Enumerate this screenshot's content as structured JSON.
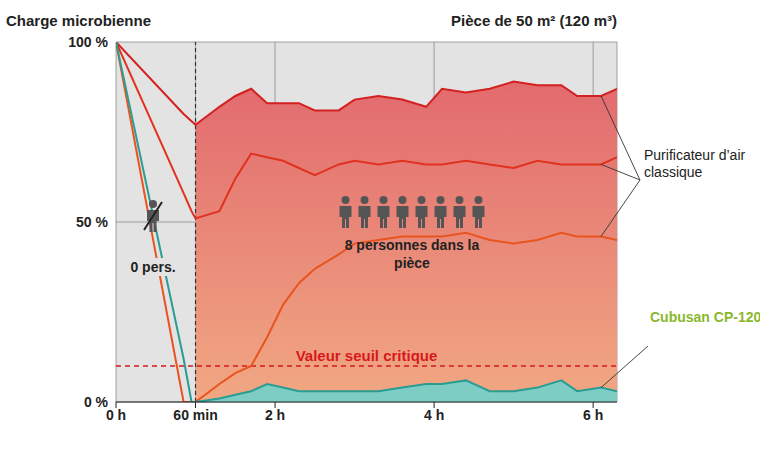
{
  "chart_data": {
    "type": "line",
    "title": "Charge microbienne",
    "subtitle": "Pièce de 50 m² (120 m³)",
    "x": [
      0,
      0.85,
      0.95,
      1,
      1.3,
      1.5,
      1.7,
      1.9,
      2.1,
      2.3,
      2.5,
      2.8,
      3.0,
      3.3,
      3.6,
      3.9,
      4.1,
      4.4,
      4.7,
      5.0,
      5.3,
      5.6,
      5.8,
      6.1,
      6.3
    ],
    "series": [
      {
        "name": "Purificateur d’air classique",
        "color": "#d42020",
        "type": "area",
        "values": [
          100,
          80,
          78,
          77,
          82,
          85,
          87,
          83,
          83,
          83,
          81,
          81,
          84,
          85,
          84,
          82,
          87,
          86,
          87,
          89,
          88,
          88,
          85,
          85,
          87
        ]
      },
      {
        "name": "Purificateur d’air classique",
        "color": "#e0321e",
        "type": "line",
        "values": [
          100,
          58,
          53,
          51,
          53,
          62,
          69,
          68,
          67,
          65,
          63,
          66,
          67,
          66,
          67,
          66,
          66,
          67,
          66,
          65,
          67,
          66,
          66,
          66,
          68
        ]
      },
      {
        "name": "Purificateur d’air classique",
        "color": "#e8541f",
        "type": "line",
        "values": [
          100,
          0,
          0,
          0,
          5,
          8,
          10,
          18,
          27,
          33,
          37,
          41,
          44,
          45,
          46,
          46,
          46,
          47,
          45,
          44,
          45,
          47,
          46,
          46,
          45
        ]
      },
      {
        "name": "Cubusan CP-120",
        "color": "#2a9d93",
        "type": "area",
        "values": [
          100,
          12,
          0,
          0,
          1,
          2,
          3,
          5,
          4,
          3,
          3,
          3,
          3,
          3,
          4,
          5,
          5,
          6,
          3,
          3,
          4,
          6,
          3,
          4,
          3
        ]
      }
    ],
    "xlim": [
      0,
      6.3
    ],
    "xticks": [
      {
        "value": 0,
        "label": "0 h"
      },
      {
        "value": 1,
        "label": "60 min"
      },
      {
        "value": 2,
        "label": "2 h"
      },
      {
        "value": 4,
        "label": "4 h"
      },
      {
        "value": 6,
        "label": "6 h"
      }
    ],
    "ylim": [
      0,
      100
    ],
    "yticks": [
      {
        "value": 0,
        "label": "0 %"
      },
      {
        "value": 50,
        "label": "50 %"
      },
      {
        "value": 100,
        "label": "100 %"
      }
    ],
    "grid": true,
    "reference_lines": [
      {
        "axis": "x",
        "value": 1
      },
      {
        "axis": "y",
        "value": 10,
        "label": "Valeur seuil critique",
        "color": "#d7191c"
      }
    ],
    "annotations": [
      {
        "text": "0 pers.",
        "people": 0
      },
      {
        "text": "8 personnes dans la pièce",
        "people": 8
      }
    ]
  }
}
